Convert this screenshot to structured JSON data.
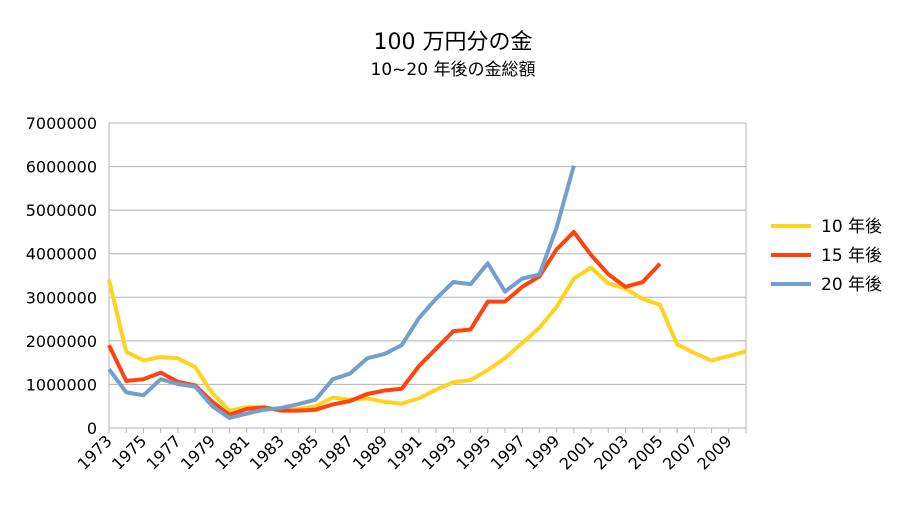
{
  "chart_data": {
    "type": "line",
    "title": "100 万円分の金",
    "subtitle": "10~20 年後の金総額",
    "xlabel": "",
    "ylabel": "",
    "ylim": [
      0,
      7000000
    ],
    "y_ticks": [
      0,
      1000000,
      2000000,
      3000000,
      4000000,
      5000000,
      6000000,
      7000000
    ],
    "y_tick_labels": [
      "0",
      "1000000",
      "2000000",
      "3000000",
      "4000000",
      "5000000",
      "6000000",
      "7000000"
    ],
    "x_tick_labels": [
      "1973",
      "1975",
      "1977",
      "1979",
      "1981",
      "1983",
      "1985",
      "1987",
      "1989",
      "1991",
      "1993",
      "1995",
      "1997",
      "1999",
      "2001",
      "2003",
      "2005",
      "2007",
      "2009"
    ],
    "grid": true,
    "legend_position": "right",
    "categories": [
      "1973",
      "1974",
      "1975",
      "1976",
      "1977",
      "1978",
      "1979",
      "1980",
      "1981",
      "1982",
      "1983",
      "1984",
      "1985",
      "1986",
      "1987",
      "1988",
      "1989",
      "1990",
      "1991",
      "1992",
      "1993",
      "1994",
      "1995",
      "1996",
      "1997",
      "1998",
      "1999",
      "2000",
      "2001",
      "2002",
      "2003",
      "2004",
      "2005",
      "2006",
      "2007",
      "2008",
      "2009",
      "2010"
    ],
    "series": [
      {
        "name": "10 年後",
        "color": "#FFD320",
        "values": [
          3400000,
          1750000,
          1550000,
          1630000,
          1600000,
          1400000,
          800000,
          400000,
          480000,
          480000,
          420000,
          440000,
          500000,
          700000,
          650000,
          680000,
          600000,
          560000,
          680000,
          880000,
          1050000,
          1100000,
          1330000,
          1600000,
          1950000,
          2300000,
          2780000,
          3430000,
          3680000,
          3320000,
          3200000,
          2960000,
          2830000,
          1920000,
          1720000,
          1550000,
          1650000,
          1760000
        ]
      },
      {
        "name": "15 年後",
        "color": "#FF420E",
        "values": [
          1900000,
          1080000,
          1120000,
          1270000,
          1060000,
          980000,
          600000,
          300000,
          440000,
          470000,
          400000,
          400000,
          420000,
          540000,
          620000,
          780000,
          860000,
          900000,
          1420000,
          1820000,
          2220000,
          2260000,
          2900000,
          2900000,
          3240000,
          3480000,
          4100000,
          4500000,
          3970000,
          3530000,
          3240000,
          3350000,
          3770000,
          null,
          null,
          null,
          null,
          null
        ]
      },
      {
        "name": "20 年後",
        "color": "#729FCF",
        "values": [
          1350000,
          820000,
          750000,
          1120000,
          1010000,
          950000,
          500000,
          230000,
          330000,
          420000,
          460000,
          550000,
          650000,
          1120000,
          1250000,
          1600000,
          1700000,
          1900000,
          2520000,
          2970000,
          3350000,
          3300000,
          3780000,
          3130000,
          3430000,
          3520000,
          4600000,
          6020000,
          null,
          null,
          null,
          null,
          null,
          null,
          null,
          null,
          null,
          null
        ]
      }
    ]
  }
}
